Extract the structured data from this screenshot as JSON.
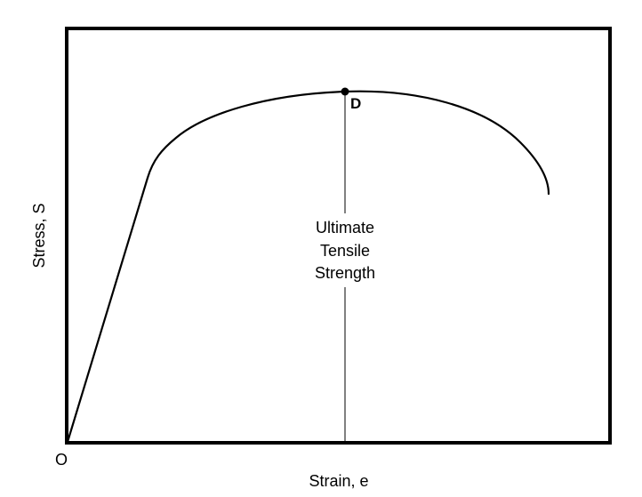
{
  "diagram": {
    "y_axis_label": "Stress, S",
    "x_axis_label": "Strain, e",
    "origin_label": "O",
    "point_label": "D",
    "annotation": {
      "line1": "Ultimate",
      "line2": "Tensile",
      "line3": "Strength"
    }
  }
}
